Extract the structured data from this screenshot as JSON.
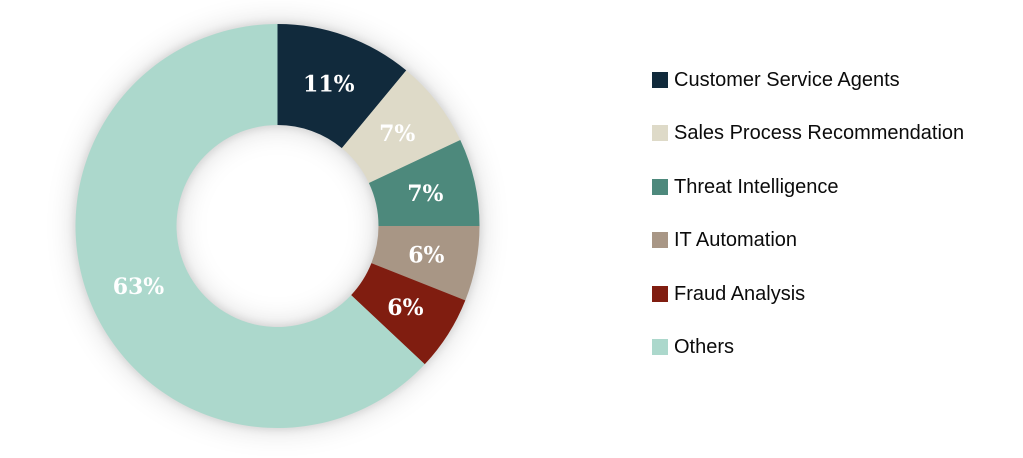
{
  "chart_data": {
    "type": "pie",
    "subtype": "donut",
    "title": "",
    "categories": [
      "Customer Service Agents",
      "Sales Process Recommendation",
      "Threat Intelligence",
      "IT Automation",
      "Fraud Analysis",
      "Others"
    ],
    "values": [
      11,
      7,
      7,
      6,
      6,
      63
    ],
    "data_labels": [
      "11%",
      "7%",
      "7%",
      "6%",
      "6%",
      "63%"
    ],
    "colors": [
      "#112A3C",
      "#DEDAC8",
      "#4D897C",
      "#A89685",
      "#801D10",
      "#ACD8CC"
    ],
    "data_label_color": "#FFFFFF",
    "start_angle_deg": 0,
    "direction": "clockwise",
    "inner_radius_ratio": 0.5,
    "legend_position": "right"
  },
  "legend": {
    "items": [
      {
        "label": "Customer Service Agents",
        "color": "#112A3C"
      },
      {
        "label": "Sales Process Recommendation",
        "color": "#DEDAC8"
      },
      {
        "label": "Threat Intelligence",
        "color": "#4D897C"
      },
      {
        "label": "IT Automation",
        "color": "#A89685"
      },
      {
        "label": "Fraud Analysis",
        "color": "#801D10"
      },
      {
        "label": "Others",
        "color": "#ACD8CC"
      }
    ]
  }
}
